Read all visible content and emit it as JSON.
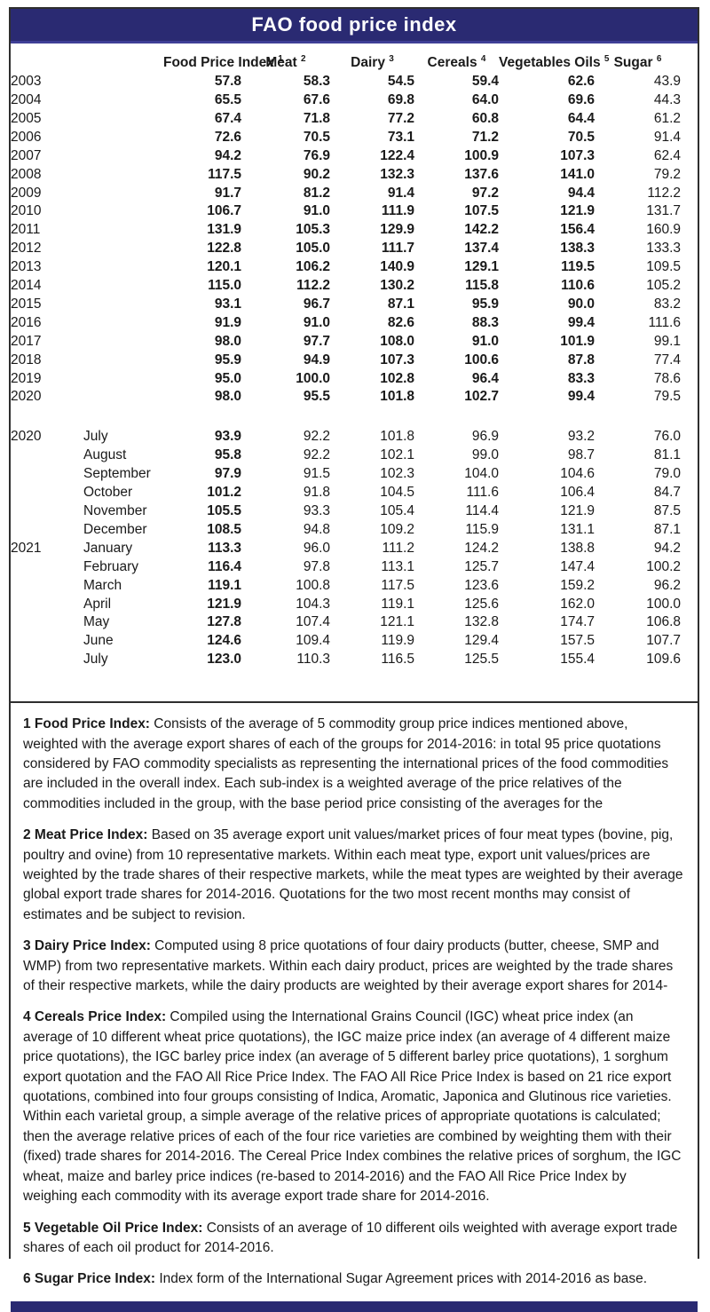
{
  "title": "FAO food price index",
  "colors": {
    "header_navy": "#2a2a72",
    "header_navy_light_edge": "#3f3f96",
    "text": "#1a1a1a",
    "border": "#2e2e2e",
    "title_text": "#ffffff"
  },
  "table": {
    "columns": [
      {
        "label": "Food Price Index",
        "sup": "1"
      },
      {
        "label": "Meat",
        "sup": "2"
      },
      {
        "label": "Dairy",
        "sup": "3"
      },
      {
        "label": "Cereals",
        "sup": "4"
      },
      {
        "label": "Vegetables Oils",
        "sup": "5"
      },
      {
        "label": "Sugar",
        "sup": "6"
      }
    ],
    "annual_rows": [
      {
        "year": "2003",
        "values": [
          "57.8",
          "58.3",
          "54.5",
          "59.4",
          "62.6",
          "43.9"
        ]
      },
      {
        "year": "2004",
        "values": [
          "65.5",
          "67.6",
          "69.8",
          "64.0",
          "69.6",
          "44.3"
        ]
      },
      {
        "year": "2005",
        "values": [
          "67.4",
          "71.8",
          "77.2",
          "60.8",
          "64.4",
          "61.2"
        ]
      },
      {
        "year": "2006",
        "values": [
          "72.6",
          "70.5",
          "73.1",
          "71.2",
          "70.5",
          "91.4"
        ]
      },
      {
        "year": "2007",
        "values": [
          "94.2",
          "76.9",
          "122.4",
          "100.9",
          "107.3",
          "62.4"
        ]
      },
      {
        "year": "2008",
        "values": [
          "117.5",
          "90.2",
          "132.3",
          "137.6",
          "141.0",
          "79.2"
        ]
      },
      {
        "year": "2009",
        "values": [
          "91.7",
          "81.2",
          "91.4",
          "97.2",
          "94.4",
          "112.2"
        ]
      },
      {
        "year": "2010",
        "values": [
          "106.7",
          "91.0",
          "111.9",
          "107.5",
          "121.9",
          "131.7"
        ]
      },
      {
        "year": "2011",
        "values": [
          "131.9",
          "105.3",
          "129.9",
          "142.2",
          "156.4",
          "160.9"
        ]
      },
      {
        "year": "2012",
        "values": [
          "122.8",
          "105.0",
          "111.7",
          "137.4",
          "138.3",
          "133.3"
        ]
      },
      {
        "year": "2013",
        "values": [
          "120.1",
          "106.2",
          "140.9",
          "129.1",
          "119.5",
          "109.5"
        ]
      },
      {
        "year": "2014",
        "values": [
          "115.0",
          "112.2",
          "130.2",
          "115.8",
          "110.6",
          "105.2"
        ]
      },
      {
        "year": "2015",
        "values": [
          "93.1",
          "96.7",
          "87.1",
          "95.9",
          "90.0",
          "83.2"
        ]
      },
      {
        "year": "2016",
        "values": [
          "91.9",
          "91.0",
          "82.6",
          "88.3",
          "99.4",
          "111.6"
        ]
      },
      {
        "year": "2017",
        "values": [
          "98.0",
          "97.7",
          "108.0",
          "91.0",
          "101.9",
          "99.1"
        ]
      },
      {
        "year": "2018",
        "values": [
          "95.9",
          "94.9",
          "107.3",
          "100.6",
          "87.8",
          "77.4"
        ]
      },
      {
        "year": "2019",
        "values": [
          "95.0",
          "100.0",
          "102.8",
          "96.4",
          "83.3",
          "78.6"
        ]
      },
      {
        "year": "2020",
        "values": [
          "98.0",
          "95.5",
          "101.8",
          "102.7",
          "99.4",
          "79.5"
        ]
      }
    ],
    "monthly_rows": [
      {
        "year": "2020",
        "month": "July",
        "values": [
          "93.9",
          "92.2",
          "101.8",
          "96.9",
          "93.2",
          "76.0"
        ]
      },
      {
        "year": "",
        "month": "August",
        "values": [
          "95.8",
          "92.2",
          "102.1",
          "99.0",
          "98.7",
          "81.1"
        ]
      },
      {
        "year": "",
        "month": "September",
        "values": [
          "97.9",
          "91.5",
          "102.3",
          "104.0",
          "104.6",
          "79.0"
        ]
      },
      {
        "year": "",
        "month": "October",
        "values": [
          "101.2",
          "91.8",
          "104.5",
          "111.6",
          "106.4",
          "84.7"
        ]
      },
      {
        "year": "",
        "month": "November",
        "values": [
          "105.5",
          "93.3",
          "105.4",
          "114.4",
          "121.9",
          "87.5"
        ]
      },
      {
        "year": "",
        "month": "December",
        "values": [
          "108.5",
          "94.8",
          "109.2",
          "115.9",
          "131.1",
          "87.1"
        ]
      },
      {
        "year": "2021",
        "month": "January",
        "values": [
          "113.3",
          "96.0",
          "111.2",
          "124.2",
          "138.8",
          "94.2"
        ]
      },
      {
        "year": "",
        "month": "February",
        "values": [
          "116.4",
          "97.8",
          "113.1",
          "125.7",
          "147.4",
          "100.2"
        ]
      },
      {
        "year": "",
        "month": "March",
        "values": [
          "119.1",
          "100.8",
          "117.5",
          "123.6",
          "159.2",
          "96.2"
        ]
      },
      {
        "year": "",
        "month": "April",
        "values": [
          "121.9",
          "104.3",
          "119.1",
          "125.6",
          "162.0",
          "100.0"
        ]
      },
      {
        "year": "",
        "month": "May",
        "values": [
          "127.8",
          "107.4",
          "121.1",
          "132.8",
          "174.7",
          "106.8"
        ]
      },
      {
        "year": "",
        "month": "June",
        "values": [
          "124.6",
          "109.4",
          "119.9",
          "129.4",
          "157.5",
          "107.7"
        ]
      },
      {
        "year": "",
        "month": "July",
        "values": [
          "123.0",
          "110.3",
          "116.5",
          "125.5",
          "155.4",
          "109.6"
        ]
      }
    ]
  },
  "footnotes": [
    {
      "label": "1 Food Price Index:",
      "text": "Consists of the average of 5 commodity group price indices mentioned above, weighted with the average export shares of each of the groups for 2014-2016: in total 95 price quotations considered by FAO commodity specialists as representing the international prices of the food commodities are included in the overall index. Each sub-index is a weighted average of the price relatives of the commodities included in the group, with the base period price consisting of the averages for the"
    },
    {
      "label": "2 Meat Price Index:",
      "text": "Based on 35 average export unit values/market prices of four meat types (bovine, pig, poultry and ovine) from 10 representative markets. Within each meat type, export unit values/prices are weighted by the trade shares of their respective markets, while the meat types are weighted by their average global export trade shares for 2014-2016. Quotations for the two most recent months may consist of estimates and be subject to revision."
    },
    {
      "label": "3 Dairy Price Index:",
      "text": "Computed using 8 price quotations of four dairy products (butter, cheese, SMP and WMP) from two representative markets. Within each dairy product, prices are weighted by the trade shares of their respective markets, while the dairy products are weighted by their average export shares for 2014-"
    },
    {
      "label": "4 Cereals Price Index:",
      "text": "Compiled using the International Grains Council (IGC) wheat price index (an average of 10 different wheat price quotations), the IGC maize price index (an average of 4 different maize price quotations), the IGC barley price index (an average of 5 different barley price quotations), 1 sorghum export quotation and the FAO All Rice Price Index. The FAO All Rice Price Index is based on 21 rice export quotations, combined into four groups consisting of Indica, Aromatic, Japonica and Glutinous rice varieties. Within each varietal group, a simple average of the relative prices of appropriate quotations is calculated; then the average relative prices of each of the four rice varieties are combined by weighting them with their (fixed) trade shares for 2014-2016. The Cereal Price Index combines the relative prices of sorghum, the IGC wheat, maize and barley price indices (re-based to 2014-2016) and the FAO All Rice Price Index by weighing each commodity with its average export trade share for 2014-2016."
    },
    {
      "label": "5 Vegetable Oil Price Index:",
      "text": "Consists of an average of 10 different oils weighted with average export trade shares of each oil product for 2014-2016."
    },
    {
      "label": "6 Sugar Price Index:",
      "text": "Index form of the International Sugar Agreement prices with 2014-2016 as base."
    }
  ]
}
